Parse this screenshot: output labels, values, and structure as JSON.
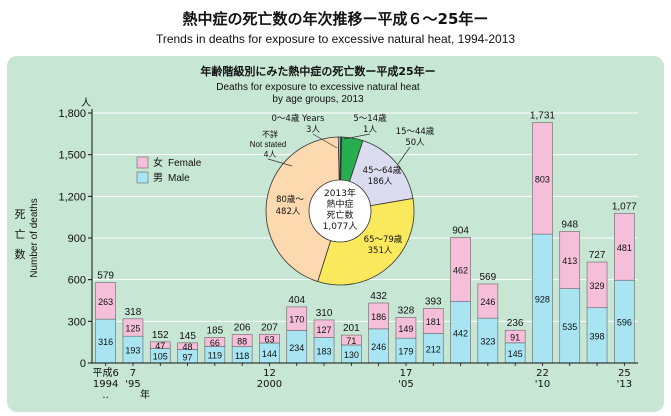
{
  "title_jp": "熱中症の死亡数の年次推移ー平成６〜25年ー",
  "title_en": "Trends in deaths for exposure to excessive natural heat, 1994-2013",
  "colors": {
    "panel": "#c7e6d4",
    "female": "#f6bfd9",
    "male": "#a8e4f2",
    "pie_green": "#27ae4f",
    "pie_blue": "#5b8dc9",
    "pie_lavender": "#dcdcf0",
    "pie_yellow": "#fbe95d",
    "pie_peach": "#fcd9ae",
    "pie_white": "#ffffff"
  },
  "chart_data": {
    "type": "bar",
    "stacked": true,
    "title": "Trends in deaths for exposure to excessive natural heat, 1994-2013",
    "categories": [
      "1994",
      "1995",
      "1996",
      "1997",
      "1998",
      "1999",
      "2000",
      "2001",
      "2002",
      "2003",
      "2004",
      "2005",
      "2006",
      "2007",
      "2008",
      "2009",
      "2010",
      "2011",
      "2012",
      "2013"
    ],
    "series": [
      {
        "name": "男 Male",
        "values": [
          316,
          193,
          105,
          97,
          119,
          118,
          144,
          234,
          183,
          130,
          246,
          179,
          212,
          442,
          323,
          145,
          928,
          535,
          398,
          596
        ]
      },
      {
        "name": "女 Female",
        "values": [
          263,
          125,
          47,
          48,
          66,
          88,
          63,
          170,
          127,
          71,
          186,
          149,
          181,
          462,
          246,
          91,
          803,
          413,
          329,
          481
        ]
      }
    ],
    "totals": [
      579,
      318,
      152,
      145,
      185,
      206,
      207,
      404,
      310,
      201,
      432,
      328,
      393,
      904,
      569,
      236,
      "1,731",
      948,
      727,
      "1,077"
    ],
    "ylim": [
      0,
      1800
    ],
    "yticks": [
      "1,800",
      "1,500",
      "1,200",
      "900",
      "600",
      "300",
      "0"
    ],
    "y_unit": "人",
    "ylabel_jp": [
      "死",
      "亡",
      "数"
    ],
    "ylabel_en": "Number of deaths",
    "x_labels": [
      {
        "lines": [
          "平成6",
          "1994"
        ],
        "index": 0
      },
      {
        "lines": [
          "7",
          "'95"
        ],
        "index": 1
      },
      {
        "lines": [
          "12",
          "2000"
        ],
        "index": 6
      },
      {
        "lines": [
          "17",
          "'05"
        ],
        "index": 11
      },
      {
        "lines": [
          "22",
          "'10"
        ],
        "index": 16
      },
      {
        "lines": [
          "25",
          "'13"
        ],
        "index": 19
      }
    ],
    "x_unit": "年",
    "x_dots": "‥",
    "legend": [
      {
        "jp": "女",
        "en": "Female"
      },
      {
        "jp": "男",
        "en": "Male"
      }
    ]
  },
  "inset": {
    "title_jp": "年齢階級別にみた熱中症の死亡数ー平成25年ー",
    "title_en_1": "Deaths for exposure to excessive natural heat",
    "title_en_2": "by age groups, 2013",
    "center_1": "2013年",
    "center_2": "熱中症",
    "center_3": "死亡数",
    "center_4": "1,077人",
    "pie": [
      {
        "label_1": "0〜4歳 Years",
        "label_2": "3人",
        "value": 3
      },
      {
        "label_1": "5〜14歳",
        "label_2": "1人",
        "value": 1
      },
      {
        "label_1": "15〜44歳",
        "label_2": "50人",
        "value": 50
      },
      {
        "label_1": "45〜64歳",
        "label_2": "186人",
        "value": 186
      },
      {
        "label_1": "65〜79歳",
        "label_2": "351人",
        "value": 351
      },
      {
        "label_1": "80歳〜",
        "label_2": "482人",
        "value": 482
      },
      {
        "label_1": "不詳",
        "label_2": "Not stated",
        "label_3": "4人",
        "value": 4
      }
    ]
  }
}
